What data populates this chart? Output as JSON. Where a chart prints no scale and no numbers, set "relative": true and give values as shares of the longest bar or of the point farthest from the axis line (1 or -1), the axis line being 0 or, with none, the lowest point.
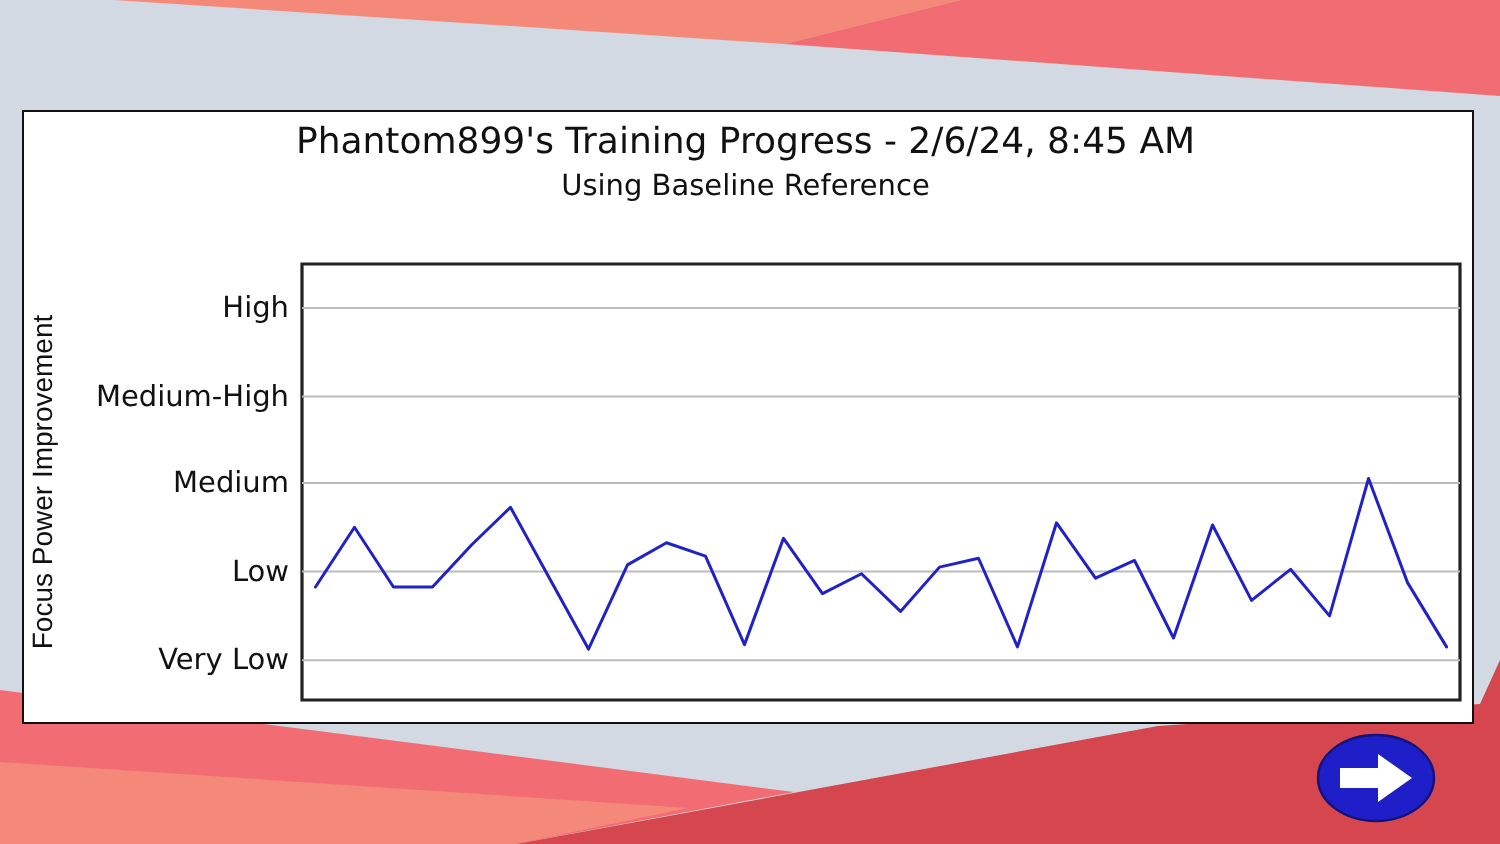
{
  "chart_data": {
    "type": "line",
    "title": "Phantom899's Training Progress - 2/6/24, 8:45 AM",
    "subtitle": "Using Baseline Reference",
    "annotations": [
      "Focus Power Improvement"
    ],
    "categories": [
      null,
      null,
      null,
      null,
      null,
      null,
      null,
      null,
      null,
      null,
      null,
      null,
      null,
      null,
      null,
      null,
      null,
      null,
      null,
      null,
      null,
      null,
      null,
      null,
      null,
      null,
      null,
      null,
      null,
      null
    ],
    "values": [
      0.51,
      0.78,
      0.51,
      0.51,
      0.7,
      0.87,
      0.55,
      0.23,
      0.61,
      0.71,
      0.65,
      0.25,
      0.73,
      0.48,
      0.57,
      0.4,
      0.6,
      0.64,
      0.24,
      0.8,
      0.55,
      0.63,
      0.28,
      0.79,
      0.45,
      0.59,
      0.38,
      1,
      0.53,
      0.24
    ],
    "color": "#2121c8",
    "relative": true,
    "ref_lines": [
      {
        "axis": "y",
        "value": 0.18,
        "label": "Very Low",
        "color": "#bcbcbc"
      },
      {
        "axis": "y",
        "value": 0.58,
        "label": "Low",
        "color": "#bcbcbc"
      },
      {
        "axis": "y",
        "value": 0.98,
        "label": "Medium",
        "color": "#bcbcbc"
      },
      {
        "axis": "y",
        "value": 1.37,
        "label": "Medium-High",
        "color": "#bcbcbc"
      },
      {
        "axis": "y",
        "value": 1.77,
        "label": "High",
        "color": "#bcbcbc"
      }
    ]
  }
}
